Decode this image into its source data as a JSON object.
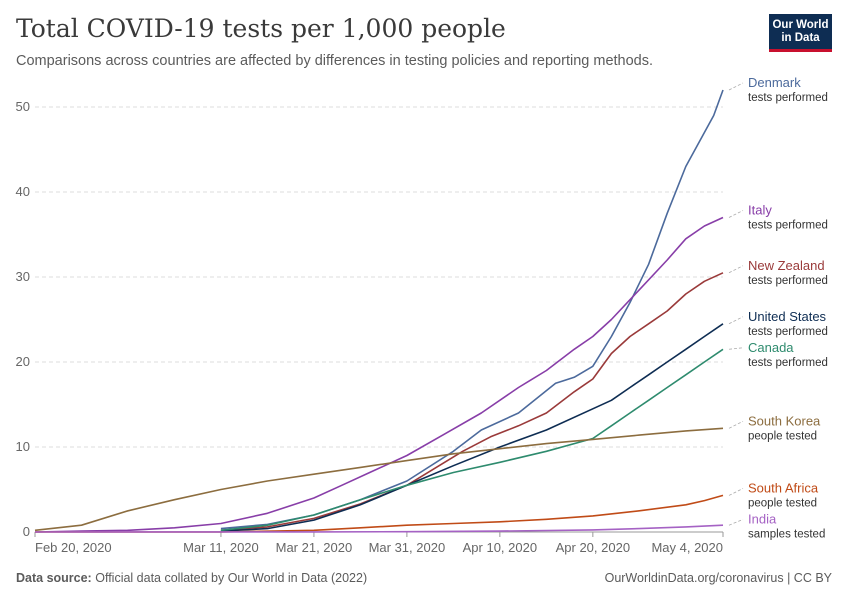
{
  "header": {
    "title": "Total COVID-19 tests per 1,000 people",
    "subtitle": "Comparisons across countries are affected by differences in testing policies and reporting methods.",
    "logo_line1": "Our World",
    "logo_line2": "in Data"
  },
  "footer": {
    "source_label": "Data source:",
    "source_text": "Official data collated by Our World in Data (2022)",
    "right_text": "OurWorldinData.org/coronavirus | CC BY"
  },
  "chart_data": {
    "type": "line",
    "title": "Total COVID-19 tests per 1,000 people",
    "xlabel": "",
    "ylabel": "",
    "x_start": "2020-02-20",
    "x_end": "2020-05-04",
    "xlim": [
      0,
      74
    ],
    "ylim": [
      0,
      52
    ],
    "yticks": [
      0,
      10,
      20,
      30,
      40,
      50
    ],
    "xticks": [
      {
        "day": 0,
        "label": "Feb 20, 2020"
      },
      {
        "day": 20,
        "label": "Mar 11, 2020"
      },
      {
        "day": 30,
        "label": "Mar 21, 2020"
      },
      {
        "day": 40,
        "label": "Mar 31, 2020"
      },
      {
        "day": 50,
        "label": "Apr 10, 2020"
      },
      {
        "day": 60,
        "label": "Apr 20, 2020"
      },
      {
        "day": 74,
        "label": "May 4, 2020"
      }
    ],
    "grid": true,
    "legend": "right",
    "series": [
      {
        "name": "Denmark",
        "sub": "tests performed",
        "color": "#4c6a9c",
        "x": [
          20,
          25,
          30,
          35,
          40,
          45,
          48,
          52,
          56,
          58,
          60,
          62,
          64,
          66,
          68,
          70,
          72,
          73,
          74
        ],
        "y": [
          0.4,
          0.9,
          2.0,
          3.8,
          6.0,
          9.5,
          12.0,
          14.0,
          17.5,
          18.2,
          19.5,
          23.0,
          27.0,
          31.5,
          37.5,
          43.0,
          47.0,
          49.0,
          52.0
        ]
      },
      {
        "name": "Italy",
        "sub": "tests performed",
        "color": "#883ea8",
        "x": [
          0,
          5,
          10,
          15,
          20,
          25,
          30,
          33,
          36,
          40,
          44,
          48,
          52,
          55,
          58,
          60,
          62,
          65,
          68,
          70,
          72,
          74
        ],
        "y": [
          0.0,
          0.1,
          0.2,
          0.5,
          1.0,
          2.2,
          4.0,
          5.5,
          7.0,
          9.0,
          11.5,
          14.0,
          17.0,
          19.0,
          21.5,
          23.0,
          25.0,
          28.5,
          32.0,
          34.5,
          36.0,
          37.0
        ]
      },
      {
        "name": "New Zealand",
        "sub": "tests performed",
        "color": "#9a3a3a",
        "x": [
          20,
          25,
          30,
          35,
          40,
          43,
          46,
          49,
          52,
          55,
          58,
          60,
          62,
          64,
          66,
          68,
          70,
          72,
          74
        ],
        "y": [
          0.2,
          0.6,
          1.6,
          3.3,
          5.5,
          7.5,
          9.5,
          11.2,
          12.5,
          14.0,
          16.5,
          18.0,
          21.0,
          23.0,
          24.5,
          26.0,
          28.0,
          29.5,
          30.5
        ]
      },
      {
        "name": "United States",
        "sub": "tests performed",
        "color": "#0e2d53",
        "x": [
          20,
          25,
          30,
          35,
          40,
          45,
          50,
          55,
          60,
          62,
          64,
          66,
          68,
          70,
          72,
          74
        ],
        "y": [
          0.1,
          0.4,
          1.4,
          3.2,
          5.5,
          7.8,
          10.0,
          12.0,
          14.5,
          15.5,
          17.0,
          18.5,
          20.0,
          21.5,
          23.0,
          24.5
        ]
      },
      {
        "name": "Canada",
        "sub": "tests performed",
        "color": "#2e8b6e",
        "x": [
          20,
          25,
          30,
          35,
          40,
          45,
          50,
          55,
          60,
          62,
          64,
          66,
          68,
          70,
          72,
          74
        ],
        "y": [
          0.2,
          0.8,
          2.0,
          3.8,
          5.5,
          7.0,
          8.2,
          9.5,
          11.0,
          12.5,
          14.0,
          15.5,
          17.0,
          18.5,
          20.0,
          21.5
        ]
      },
      {
        "name": "South Korea",
        "sub": "people tested",
        "color": "#8c6d3f",
        "x": [
          0,
          5,
          10,
          15,
          20,
          25,
          30,
          35,
          40,
          45,
          50,
          55,
          60,
          65,
          70,
          74
        ],
        "y": [
          0.2,
          0.8,
          2.5,
          3.8,
          5.0,
          6.0,
          6.8,
          7.6,
          8.4,
          9.2,
          9.8,
          10.4,
          10.9,
          11.4,
          11.9,
          12.2
        ]
      },
      {
        "name": "South Africa",
        "sub": "people tested",
        "color": "#c04b17",
        "x": [
          0,
          20,
          30,
          35,
          40,
          45,
          50,
          55,
          60,
          65,
          70,
          72,
          74
        ],
        "y": [
          0.0,
          0.0,
          0.2,
          0.5,
          0.8,
          1.0,
          1.2,
          1.5,
          1.9,
          2.5,
          3.2,
          3.7,
          4.3
        ]
      },
      {
        "name": "India",
        "sub": "samples tested",
        "color": "#a562c4",
        "x": [
          0,
          30,
          40,
          50,
          60,
          65,
          70,
          74
        ],
        "y": [
          0.0,
          0.01,
          0.03,
          0.1,
          0.25,
          0.4,
          0.6,
          0.8
        ]
      }
    ]
  }
}
